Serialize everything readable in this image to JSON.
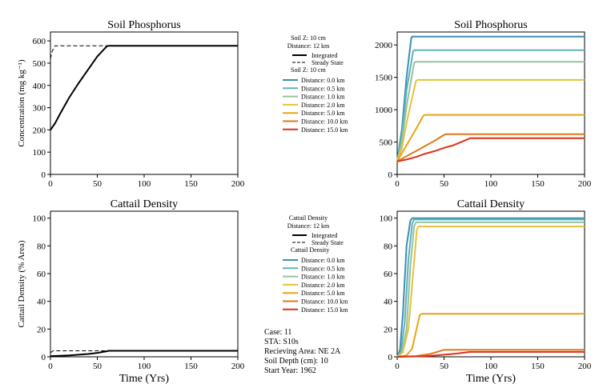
{
  "colors": {
    "d0": "#3b8fb3",
    "d05": "#5fb3b8",
    "d10": "#96c2a0",
    "d20": "#e6c23a",
    "d50": "#e8a317",
    "d100": "#e0781a",
    "d150": "#d93218"
  },
  "info": {
    "case": "Case: 11",
    "sta": "STA: S10s",
    "area": "Recieving Area: NE 2A",
    "depth": "Soil Depth (cm): 10",
    "year": "Start Year: 1962"
  },
  "legends": [
    {
      "header": [
        "Soil Z: 10 cm",
        "Distance: 12 km"
      ],
      "line_items": [
        {
          "label": "Integrated",
          "dash": false
        },
        {
          "label": "Steady State",
          "dash": true
        }
      ],
      "sub_header": "Soil Z: 10 cm",
      "dist_items": [
        {
          "label": "Distance: 0.0 km",
          "color": "#3b8fb3"
        },
        {
          "label": "Distance: 0.5 km",
          "color": "#5fb3b8"
        },
        {
          "label": "Distance: 1.0 km",
          "color": "#96c2a0"
        },
        {
          "label": "Distance: 2.0 km",
          "color": "#e6c23a"
        },
        {
          "label": "Distance: 5.0 km",
          "color": "#e8a317"
        },
        {
          "label": "Distance: 10.0 km",
          "color": "#e0781a"
        },
        {
          "label": "Distance: 15.0 km",
          "color": "#d93218"
        }
      ]
    },
    {
      "header": [
        "Cattail Density",
        "Distance: 12 km"
      ],
      "line_items": [
        {
          "label": "Integrated",
          "dash": false
        },
        {
          "label": "Steady State",
          "dash": true
        }
      ],
      "sub_header": "Cattail Density",
      "dist_items": [
        {
          "label": "Distance: 0.0 km",
          "color": "#3b8fb3"
        },
        {
          "label": "Distance: 0.5 km",
          "color": "#5fb3b8"
        },
        {
          "label": "Distance: 1.0 km",
          "color": "#96c2a0"
        },
        {
          "label": "Distance: 2.0 km",
          "color": "#e6c23a"
        },
        {
          "label": "Distance: 5.0 km",
          "color": "#e8a317"
        },
        {
          "label": "Distance: 10.0 km",
          "color": "#e0781a"
        },
        {
          "label": "Distance: 15.0 km",
          "color": "#d93218"
        }
      ]
    }
  ],
  "chart_data": [
    {
      "id": "soil-left",
      "type": "line",
      "title": "Soil Phosphorus",
      "xlabel": "",
      "ylabel": "Concentration (mg kg⁻¹)",
      "xlim": [
        0,
        200
      ],
      "ylim": [
        0,
        640
      ],
      "xticks": [
        0,
        50,
        100,
        150,
        200
      ],
      "yticks": [
        0,
        100,
        200,
        300,
        400,
        500,
        600
      ],
      "series": [
        {
          "name": "Integrated",
          "color": "#000000",
          "dash": false,
          "width": 2,
          "x": [
            0,
            5,
            10,
            20,
            30,
            40,
            50,
            60,
            62,
            200
          ],
          "y": [
            200,
            230,
            270,
            345,
            410,
            470,
            530,
            575,
            578,
            578
          ]
        },
        {
          "name": "Steady State",
          "color": "#000000",
          "dash": true,
          "width": 1,
          "x": [
            0,
            2,
            5,
            200
          ],
          "y": [
            520,
            555,
            578,
            578
          ]
        }
      ]
    },
    {
      "id": "soil-right",
      "type": "line",
      "title": "Soil Phosphorus",
      "xlabel": "",
      "ylabel": "",
      "xlim": [
        0,
        200
      ],
      "ylim": [
        0,
        2200
      ],
      "xticks": [
        0,
        50,
        100,
        150,
        200
      ],
      "yticks": [
        0,
        500,
        1000,
        1500,
        2000
      ],
      "series": [
        {
          "name": "Distance: 0.0 km",
          "color": "#3b8fb3",
          "x": [
            0,
            5,
            10,
            15,
            16,
            200
          ],
          "y": [
            200,
            700,
            1500,
            2100,
            2130,
            2130
          ]
        },
        {
          "name": "Distance: 0.5 km",
          "color": "#5fb3b8",
          "x": [
            0,
            5,
            10,
            17,
            18,
            200
          ],
          "y": [
            200,
            600,
            1300,
            1900,
            1920,
            1920
          ]
        },
        {
          "name": "Distance: 1.0 km",
          "color": "#96c2a0",
          "x": [
            0,
            5,
            10,
            18,
            20,
            200
          ],
          "y": [
            200,
            500,
            1050,
            1720,
            1740,
            1740
          ]
        },
        {
          "name": "Distance: 2.0 km",
          "color": "#e6c23a",
          "x": [
            0,
            5,
            10,
            20,
            22,
            200
          ],
          "y": [
            200,
            400,
            800,
            1440,
            1460,
            1460
          ]
        },
        {
          "name": "Distance: 5.0 km",
          "color": "#e8a317",
          "x": [
            0,
            10,
            20,
            28,
            30,
            200
          ],
          "y": [
            200,
            450,
            700,
            910,
            920,
            920
          ]
        },
        {
          "name": "Distance: 10.0 km",
          "color": "#e0781a",
          "x": [
            0,
            10,
            20,
            30,
            40,
            50,
            52,
            200
          ],
          "y": [
            200,
            280,
            360,
            440,
            520,
            610,
            620,
            620
          ]
        },
        {
          "name": "Distance: 15.0 km",
          "color": "#d93218",
          "x": [
            0,
            10,
            20,
            30,
            40,
            50,
            60,
            70,
            78,
            200
          ],
          "y": [
            200,
            230,
            270,
            320,
            360,
            410,
            450,
            510,
            560,
            560
          ]
        }
      ]
    },
    {
      "id": "cattail-left",
      "type": "line",
      "title": "Cattail Density",
      "xlabel": "Time (Yrs)",
      "ylabel": "Cattail Density (% Area)",
      "xlim": [
        0,
        200
      ],
      "ylim": [
        0,
        105
      ],
      "xticks": [
        0,
        50,
        100,
        150,
        200
      ],
      "yticks": [
        0,
        20,
        40,
        60,
        80,
        100
      ],
      "series": [
        {
          "name": "Integrated",
          "color": "#000000",
          "dash": false,
          "width": 2,
          "x": [
            0,
            10,
            20,
            30,
            40,
            50,
            60,
            62,
            200
          ],
          "y": [
            0.5,
            0.7,
            1,
            1.5,
            2,
            2.8,
            4,
            4.3,
            4.3
          ]
        },
        {
          "name": "Steady State",
          "color": "#000000",
          "dash": true,
          "width": 1,
          "x": [
            0,
            3,
            200
          ],
          "y": [
            3,
            4.3,
            4.3
          ]
        }
      ]
    },
    {
      "id": "cattail-right",
      "type": "line",
      "title": "Cattail Density",
      "xlabel": "Time (Yrs)",
      "ylabel": "",
      "xlim": [
        0,
        200
      ],
      "ylim": [
        0,
        105
      ],
      "xticks": [
        0,
        50,
        100,
        150,
        200
      ],
      "yticks": [
        0,
        20,
        40,
        60,
        80,
        100
      ],
      "series": [
        {
          "name": "Distance: 0.0 km",
          "color": "#3b8fb3",
          "x": [
            0,
            3,
            6,
            10,
            14,
            16,
            200
          ],
          "y": [
            0,
            5,
            30,
            80,
            98,
            100,
            100
          ]
        },
        {
          "name": "Distance: 0.5 km",
          "color": "#5fb3b8",
          "x": [
            0,
            4,
            8,
            12,
            16,
            18,
            200
          ],
          "y": [
            0,
            4,
            25,
            70,
            96,
            99,
            99
          ]
        },
        {
          "name": "Distance: 1.0 km",
          "color": "#96c2a0",
          "x": [
            0,
            5,
            10,
            14,
            18,
            20,
            200
          ],
          "y": [
            0,
            3,
            20,
            65,
            94,
            97,
            97
          ]
        },
        {
          "name": "Distance: 2.0 km",
          "color": "#e6c23a",
          "x": [
            0,
            6,
            12,
            17,
            21,
            23,
            200
          ],
          "y": [
            0,
            3,
            20,
            60,
            92,
            94,
            94
          ]
        },
        {
          "name": "Distance: 5.0 km",
          "color": "#e8a317",
          "x": [
            0,
            10,
            16,
            20,
            24,
            26,
            200
          ],
          "y": [
            0,
            1,
            6,
            18,
            30,
            31,
            31
          ]
        },
        {
          "name": "Distance: 10.0 km",
          "color": "#e0781a",
          "x": [
            0,
            20,
            35,
            45,
            50,
            200
          ],
          "y": [
            0,
            0.5,
            2,
            4,
            5,
            5
          ]
        },
        {
          "name": "Distance: 15.0 km",
          "color": "#d93218",
          "x": [
            0,
            30,
            50,
            65,
            75,
            78,
            200
          ],
          "y": [
            0,
            0.4,
            1.5,
            2.5,
            3.3,
            3.5,
            3.5
          ]
        }
      ]
    }
  ]
}
